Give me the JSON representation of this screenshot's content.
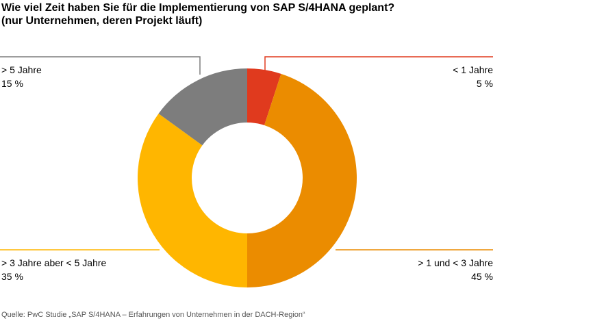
{
  "title": {
    "line1": "Wie viel Zeit haben Sie für die Implementierung von SAP S/4HANA geplant?",
    "line2": "(nur Unternehmen, deren Projekt läuft)"
  },
  "source": "Quelle: PwC Studie „SAP S/4HANA – Erfahrungen von Unternehmen in der DACH-Region“",
  "chart_data": {
    "type": "donut",
    "unit": "%",
    "slices": [
      {
        "label": "< 1 Jahre",
        "value": 5,
        "value_label": "5 %",
        "color": "#E03A1E"
      },
      {
        "label": "> 1 und < 3 Jahre",
        "value": 45,
        "value_label": "45 %",
        "color": "#EB8C00"
      },
      {
        "label": "> 3 Jahre aber < 5 Jahre",
        "value": 35,
        "value_label": "35 %",
        "color": "#FFB600"
      },
      {
        "label": "> 5 Jahre",
        "value": 15,
        "value_label": "15 %",
        "color": "#7D7D7D"
      }
    ]
  }
}
